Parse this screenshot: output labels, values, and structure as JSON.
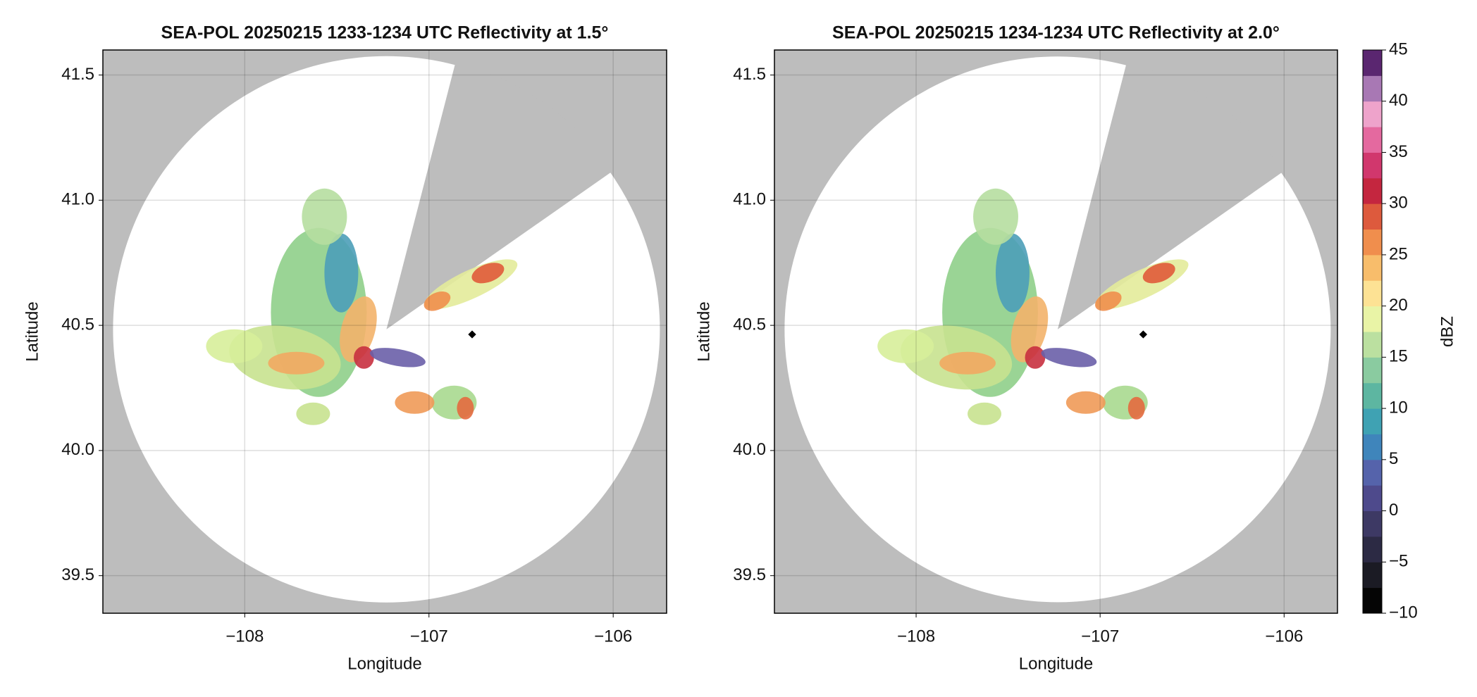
{
  "chart_data": [
    {
      "type": "radar-ppi",
      "title": "SEA-POL 20250215 1233-1234 UTC Reflectivity at 1.5°",
      "xlabel": "Longitude",
      "ylabel": "Latitude",
      "xlim": [
        -108.77,
        -105.71
      ],
      "ylim": [
        39.35,
        41.6
      ],
      "xticks": [
        {
          "value": -108,
          "label": "−108"
        },
        {
          "value": -107,
          "label": "−107"
        },
        {
          "value": -106,
          "label": "−106"
        }
      ],
      "yticks": [
        39.5,
        {
          "value": 40,
          "label": "40.0"
        },
        40.5,
        {
          "value": 41,
          "label": "41.0"
        },
        41.5
      ],
      "grid": true
    },
    {
      "type": "radar-ppi",
      "title": "SEA-POL 20250215 1234-1234 UTC Reflectivity at 2.0°",
      "xlabel": "Longitude",
      "ylabel": "Latitude",
      "xlim": [
        -108.77,
        -105.71
      ],
      "ylim": [
        39.35,
        41.6
      ],
      "xticks": [
        {
          "value": -108,
          "label": "−108"
        },
        {
          "value": -107,
          "label": "−107"
        },
        {
          "value": -106,
          "label": "−106"
        }
      ],
      "yticks": [
        39.5,
        {
          "value": 40,
          "label": "40.0"
        },
        40.5,
        {
          "value": 41,
          "label": "41.0"
        },
        41.5
      ],
      "grid": true
    }
  ],
  "colorbar": {
    "label": "dBZ",
    "lim": [
      -10,
      45
    ],
    "ticks": [
      {
        "value": -10,
        "label": "−10"
      },
      {
        "value": -5,
        "label": "−5"
      },
      0,
      5,
      10,
      15,
      20,
      25,
      30,
      35,
      40,
      45
    ],
    "colors": [
      "#050505",
      "#1b1b24",
      "#2c2a44",
      "#3d3964",
      "#4e4a8c",
      "#5563ab",
      "#3f85bb",
      "#3fa2b3",
      "#5db6a1",
      "#8acba0",
      "#bbe0a0",
      "#e9f4a6",
      "#fde294",
      "#f8bd6b",
      "#f08e4d",
      "#dd5a3d",
      "#c4263f",
      "#d1376d",
      "#e4699f",
      "#eea3cb",
      "#a878b4",
      "#5a2670"
    ]
  }
}
